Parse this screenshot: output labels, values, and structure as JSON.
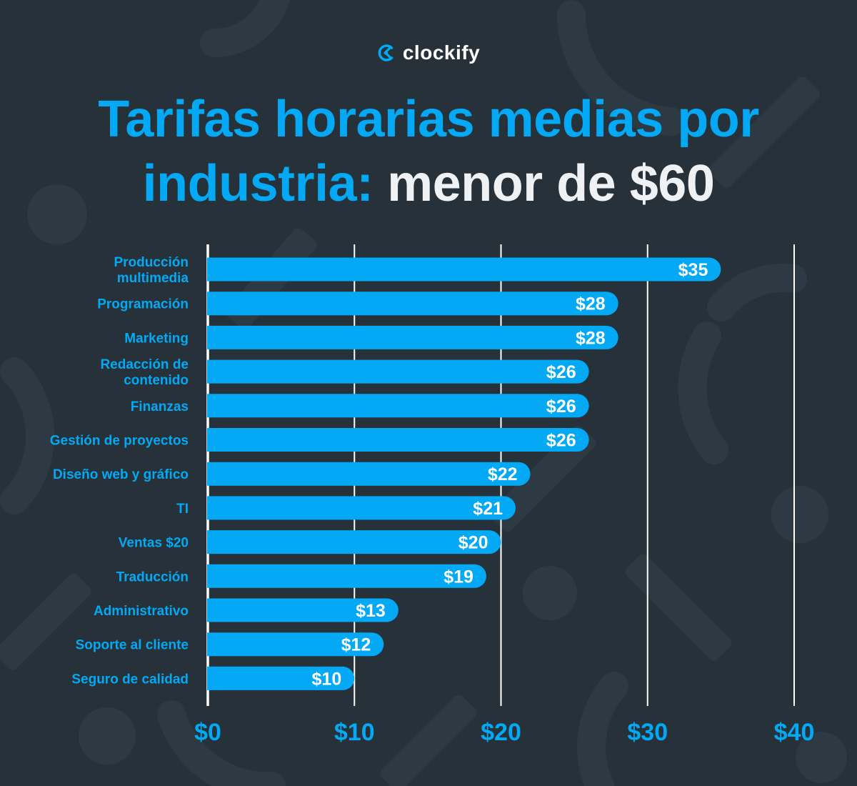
{
  "brand": {
    "name": "clockify",
    "logo_icon": "clockify-logo-icon"
  },
  "headline": {
    "line1": "Tarifas horarias medias por",
    "line2_prefix": "industria:",
    "line2_accent": "menor de $60"
  },
  "colors": {
    "background": "#26313a",
    "accent": "#03a9f4",
    "bar": "#03a9f4",
    "gridline": "#ffffff",
    "bar_label": "#ffffff",
    "headline_accent": "#eef2f5"
  },
  "chart_data": {
    "type": "bar",
    "orientation": "horizontal",
    "title": "Tarifas horarias medias por industria: menor de $60",
    "xlabel": "",
    "ylabel": "",
    "xlim": [
      0,
      40
    ],
    "ticks": [
      {
        "value": 0,
        "label": "$0"
      },
      {
        "value": 10,
        "label": "$10"
      },
      {
        "value": 20,
        "label": "$20"
      },
      {
        "value": 30,
        "label": "$30"
      },
      {
        "value": 40,
        "label": "$40"
      }
    ],
    "grid": true,
    "categories": [
      "Producción\nmultimedia",
      "Programación",
      "Marketing",
      "Redacción de\ncontenido",
      "Finanzas",
      "Gestión de proyectos",
      "Diseño web y gráfico",
      "TI",
      "Ventas $20",
      "Traducción",
      "Administrativo",
      "Soporte al cliente",
      "Seguro de calidad"
    ],
    "values": [
      35,
      28,
      28,
      26,
      26,
      26,
      22,
      21,
      20,
      19,
      13,
      12,
      10
    ],
    "value_labels": [
      "$35",
      "$28",
      "$28",
      "$26",
      "$26",
      "$26",
      "$22",
      "$21",
      "$20",
      "$19",
      "$13",
      "$12",
      "$10"
    ]
  }
}
